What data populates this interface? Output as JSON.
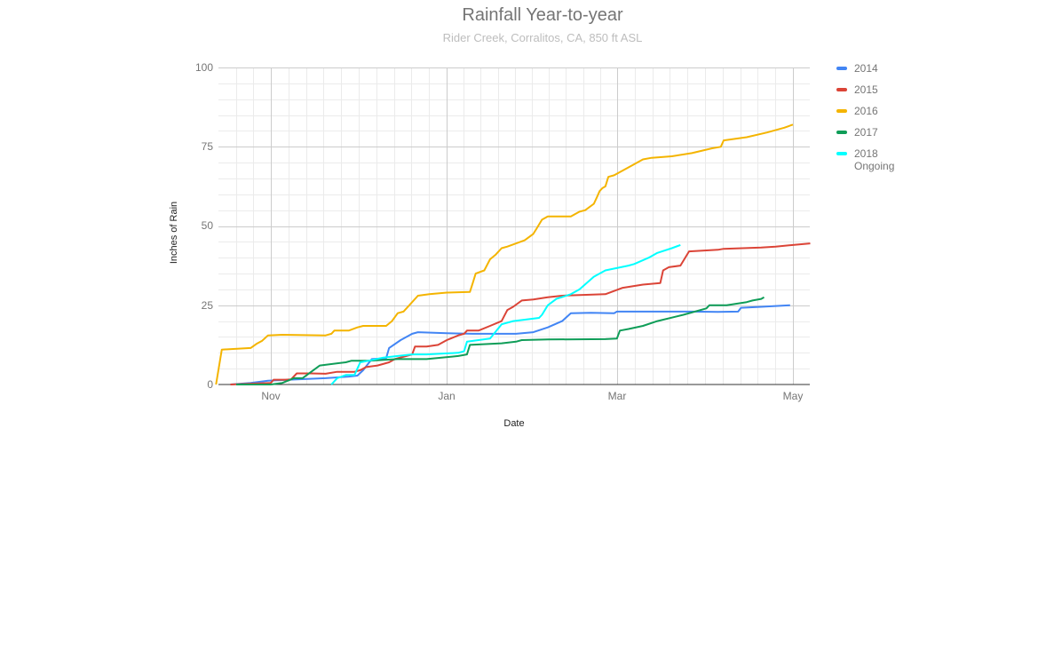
{
  "header": {
    "title": "Rainfall Year-to-year",
    "subtitle": "Rider Creek, Corralitos, CA, 850 ft ASL"
  },
  "legend": {
    "items": [
      {
        "label": "2014",
        "color": "#4285f4"
      },
      {
        "label": "2015",
        "color": "#db4437"
      },
      {
        "label": "2016",
        "color": "#f4b400"
      },
      {
        "label": "2017",
        "color": "#0f9d58"
      },
      {
        "label": "2018\nOngoing",
        "color": "#00ffff"
      }
    ]
  },
  "chart_data": {
    "type": "line",
    "title": "Rainfall Year-to-year",
    "subtitle": "Rider Creek, Corralitos, CA, 850 ft ASL",
    "xlabel": "Date",
    "ylabel": "Inches of Rain",
    "ylim": [
      0,
      100
    ],
    "yticks": [
      0,
      25,
      50,
      75,
      100
    ],
    "xticks": [
      "Nov",
      "Jan",
      "Mar",
      "May"
    ],
    "xrange": [
      "Oct 13",
      "May 7"
    ],
    "grid": true,
    "legend_position": "right",
    "series": [
      {
        "name": "2014",
        "color": "#4285f4",
        "points": [
          [
            "Oct 18",
            0
          ],
          [
            "Oct 25",
            0.5
          ],
          [
            "Oct 31",
            1.2
          ],
          [
            "Nov 10",
            1.6
          ],
          [
            "Nov 20",
            2
          ],
          [
            "Nov 28",
            2.5
          ],
          [
            "Dec 1",
            2.8
          ],
          [
            "Dec 3",
            4.5
          ],
          [
            "Dec 6",
            8
          ],
          [
            "Dec 11",
            8.3
          ],
          [
            "Dec 12",
            11.5
          ],
          [
            "Dec 16",
            14
          ],
          [
            "Dec 20",
            16
          ],
          [
            "Dec 22",
            16.5
          ],
          [
            "Jan 1",
            16.2
          ],
          [
            "Jan 10",
            16
          ],
          [
            "Jan 25",
            16
          ],
          [
            "Jan 31",
            16.5
          ],
          [
            "Feb 5",
            18
          ],
          [
            "Feb 10",
            20
          ],
          [
            "Feb 13",
            22.5
          ],
          [
            "Feb 20",
            22.6
          ],
          [
            "Feb 28",
            22.5
          ],
          [
            "Mar 1",
            23
          ],
          [
            "Mar 20",
            23
          ],
          [
            "Mar 27",
            23
          ],
          [
            "Apr 5",
            22.9
          ],
          [
            "Apr 12",
            23
          ],
          [
            "Apr 13",
            24.2
          ],
          [
            "Apr 20",
            24.5
          ],
          [
            "Apr 30",
            25
          ]
        ]
      },
      {
        "name": "2015",
        "color": "#db4437",
        "points": [
          [
            "Oct 18",
            0
          ],
          [
            "Nov 1",
            0.5
          ],
          [
            "Nov 2",
            1.5
          ],
          [
            "Nov 6",
            1.5
          ],
          [
            "Nov 8",
            1.6
          ],
          [
            "Nov 10",
            3.5
          ],
          [
            "Nov 15",
            3.5
          ],
          [
            "Nov 20",
            3.4
          ],
          [
            "Nov 24",
            4
          ],
          [
            "Nov 30",
            4
          ],
          [
            "Dec 2",
            4.5
          ],
          [
            "Dec 4",
            5.5
          ],
          [
            "Dec 8",
            6
          ],
          [
            "Dec 12",
            7
          ],
          [
            "Dec 14",
            8
          ],
          [
            "Dec 20",
            9.5
          ],
          [
            "Dec 21",
            12
          ],
          [
            "Dec 25",
            12
          ],
          [
            "Dec 29",
            12.5
          ],
          [
            "Jan 1",
            14
          ],
          [
            "Jan 5",
            15.5
          ],
          [
            "Jan 7",
            16
          ],
          [
            "Jan 8",
            17
          ],
          [
            "Jan 12",
            17
          ],
          [
            "Jan 16",
            18.5
          ],
          [
            "Jan 20",
            20
          ],
          [
            "Jan 22",
            23.5
          ],
          [
            "Jan 24",
            24.5
          ],
          [
            "Jan 27",
            26.5
          ],
          [
            "Jan 31",
            26.8
          ],
          [
            "Feb 5",
            27.5
          ],
          [
            "Feb 10",
            28
          ],
          [
            "Feb 25",
            28.5
          ],
          [
            "Mar 3",
            30.5
          ],
          [
            "Mar 10",
            31.5
          ],
          [
            "Mar 16",
            32
          ],
          [
            "Mar 17",
            36
          ],
          [
            "Mar 19",
            37
          ],
          [
            "Mar 23",
            37.5
          ],
          [
            "Mar 26",
            42
          ],
          [
            "Apr 5",
            42.5
          ],
          [
            "Apr 7",
            42.8
          ],
          [
            "Apr 20",
            43.2
          ],
          [
            "Apr 25",
            43.5
          ],
          [
            "May 1",
            44
          ],
          [
            "May 7",
            44.5
          ]
        ]
      },
      {
        "name": "2016",
        "color": "#f4b400",
        "points": [
          [
            "Oct 13",
            0
          ],
          [
            "Oct 15",
            11
          ],
          [
            "Oct 25",
            11.5
          ],
          [
            "Oct 27",
            12.8
          ],
          [
            "Oct 29",
            13.8
          ],
          [
            "Oct 31",
            15.5
          ],
          [
            "Nov 5",
            15.7
          ],
          [
            "Nov 20",
            15.5
          ],
          [
            "Nov 22",
            16
          ],
          [
            "Nov 23",
            17
          ],
          [
            "Nov 28",
            17
          ],
          [
            "Dec 1",
            18
          ],
          [
            "Dec 3",
            18.5
          ],
          [
            "Dec 11",
            18.5
          ],
          [
            "Dec 13",
            20
          ],
          [
            "Dec 15",
            22.5
          ],
          [
            "Dec 17",
            23
          ],
          [
            "Dec 19",
            25
          ],
          [
            "Dec 22",
            28
          ],
          [
            "Dec 26",
            28.5
          ],
          [
            "Jan 1",
            29
          ],
          [
            "Jan 9",
            29.2
          ],
          [
            "Jan 10",
            32
          ],
          [
            "Jan 11",
            35
          ],
          [
            "Jan 14",
            36
          ],
          [
            "Jan 16",
            39.5
          ],
          [
            "Jan 18",
            41
          ],
          [
            "Jan 20",
            43
          ],
          [
            "Jan 22",
            43.5
          ],
          [
            "Jan 28",
            45.5
          ],
          [
            "Jan 31",
            47.5
          ],
          [
            "Feb 1",
            49
          ],
          [
            "Feb 3",
            52
          ],
          [
            "Feb 5",
            53
          ],
          [
            "Feb 13",
            53
          ],
          [
            "Feb 16",
            54.5
          ],
          [
            "Feb 18",
            55
          ],
          [
            "Feb 21",
            57
          ],
          [
            "Feb 22",
            59
          ],
          [
            "Feb 23",
            61
          ],
          [
            "Feb 24",
            62
          ],
          [
            "Feb 25",
            62.5
          ],
          [
            "Feb 26",
            65.5
          ],
          [
            "Feb 28",
            66
          ],
          [
            "Mar 5",
            68.5
          ],
          [
            "Mar 10",
            71
          ],
          [
            "Mar 13",
            71.5
          ],
          [
            "Mar 20",
            72
          ],
          [
            "Mar 27",
            73
          ],
          [
            "Apr 3",
            74.5
          ],
          [
            "Apr 6",
            75
          ],
          [
            "Apr 7",
            77
          ],
          [
            "Apr 15",
            78
          ],
          [
            "Apr 22",
            79.5
          ],
          [
            "Apr 28",
            81
          ],
          [
            "May 1",
            82
          ]
        ]
      },
      {
        "name": "2017",
        "color": "#0f9d58",
        "points": [
          [
            "Oct 20",
            0
          ],
          [
            "Oct 28",
            0
          ],
          [
            "Nov 1",
            0
          ],
          [
            "Nov 5",
            0.5
          ],
          [
            "Nov 9",
            2
          ],
          [
            "Nov 12",
            2
          ],
          [
            "Nov 15",
            4
          ],
          [
            "Nov 18",
            6
          ],
          [
            "Nov 27",
            7
          ],
          [
            "Nov 29",
            7.5
          ],
          [
            "Dec 5",
            7.5
          ],
          [
            "Dec 15",
            8
          ],
          [
            "Dec 25",
            8
          ],
          [
            "Jan 5",
            9
          ],
          [
            "Jan 8",
            9.5
          ],
          [
            "Jan 9",
            12.5
          ],
          [
            "Jan 20",
            13
          ],
          [
            "Jan 25",
            13.5
          ],
          [
            "Jan 27",
            14
          ],
          [
            "Feb 5",
            14.2
          ],
          [
            "Feb 25",
            14.3
          ],
          [
            "Mar 1",
            14.5
          ],
          [
            "Mar 2",
            17
          ],
          [
            "Mar 5",
            17.5
          ],
          [
            "Mar 10",
            18.5
          ],
          [
            "Mar 15",
            20
          ],
          [
            "Mar 24",
            22
          ],
          [
            "Apr 1",
            24
          ],
          [
            "Apr 2",
            25
          ],
          [
            "Apr 8",
            25
          ],
          [
            "Apr 15",
            26
          ],
          [
            "Apr 17",
            26.5
          ],
          [
            "Apr 20",
            27
          ],
          [
            "Apr 21",
            27.5
          ]
        ]
      },
      {
        "name": "2018 Ongoing",
        "color": "#00ffff",
        "points": [
          [
            "Nov 22",
            0
          ],
          [
            "Nov 24",
            2
          ],
          [
            "Nov 27",
            3
          ],
          [
            "Nov 30",
            3
          ],
          [
            "Dec 2",
            7
          ],
          [
            "Dec 5",
            7.5
          ],
          [
            "Dec 10",
            8.5
          ],
          [
            "Dec 15",
            9
          ],
          [
            "Dec 20",
            9.5
          ],
          [
            "Dec 25",
            9.5
          ],
          [
            "Jan 5",
            10
          ],
          [
            "Jan 7",
            10.5
          ],
          [
            "Jan 8",
            13.5
          ],
          [
            "Jan 12",
            14
          ],
          [
            "Jan 16",
            14.5
          ],
          [
            "Jan 20",
            19
          ],
          [
            "Jan 24",
            20
          ],
          [
            "Feb 2",
            21
          ],
          [
            "Feb 3",
            22
          ],
          [
            "Feb 5",
            25
          ],
          [
            "Feb 8",
            27
          ],
          [
            "Feb 13",
            28.5
          ],
          [
            "Feb 16",
            30
          ],
          [
            "Feb 21",
            34
          ],
          [
            "Feb 25",
            36
          ],
          [
            "Mar 5",
            37.5
          ],
          [
            "Mar 7",
            38
          ],
          [
            "Mar 12",
            40
          ],
          [
            "Mar 15",
            41.5
          ],
          [
            "Mar 20",
            43
          ],
          [
            "Mar 23",
            44
          ]
        ]
      }
    ]
  },
  "axes": {
    "yticks": [
      "100",
      "75",
      "50",
      "25",
      "0"
    ],
    "xticks": [
      "Nov",
      "Jan",
      "Mar",
      "May"
    ],
    "xlabel": "Date",
    "ylabel": "Inches of Rain"
  }
}
